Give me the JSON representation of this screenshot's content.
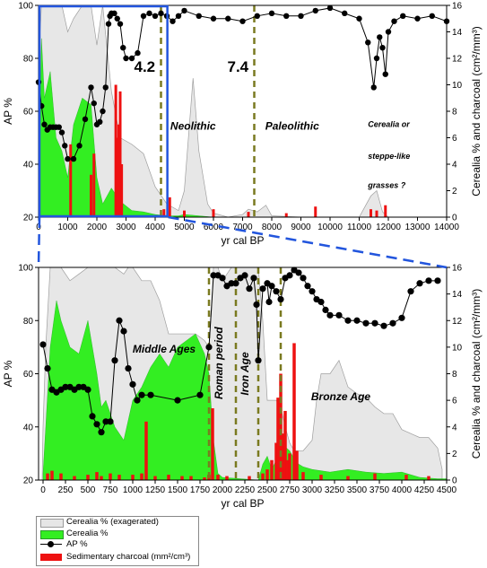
{
  "legend": {
    "cerealia_exag": "Cerealia % (exagerated)",
    "cerealia": "Cerealia %",
    "ap": "AP %",
    "charcoal": "Sedimentary charcoal (mm²/cm³)"
  },
  "colors": {
    "cerealia": "#33ee22",
    "charcoal": "#ee1111",
    "ap": "#000000",
    "exag_fill": "#e6e6e6",
    "exag_line": "#9a9a9a",
    "box": "#2255dd",
    "event_line": "#7a7a20"
  },
  "chart_data": [
    {
      "type": "line",
      "xlabel": "yr cal BP",
      "ylabel": "AP %",
      "y2label": "Cerealia % and charcoal (cm²/mm³)",
      "xlim": [
        0,
        14000
      ],
      "xticks": [
        0,
        1000,
        2000,
        3000,
        4000,
        5000,
        6000,
        7000,
        8000,
        9000,
        10000,
        11000,
        12000,
        13000,
        14000
      ],
      "ylim": [
        20,
        100
      ],
      "yticks": [
        20,
        40,
        60,
        80,
        100
      ],
      "y2lim": [
        0,
        16
      ],
      "y2ticks": [
        0,
        2,
        4,
        6,
        8,
        10,
        12,
        14,
        16
      ],
      "events": [
        {
          "x": 4200,
          "label": "4.2"
        },
        {
          "x": 7400,
          "label": "7.4"
        }
      ],
      "annotations": [
        {
          "text": "Neolithic",
          "x": 5300,
          "y": 53
        },
        {
          "text": "Paleolithic",
          "x": 8700,
          "y": 53
        },
        {
          "text": "Cerealia or",
          "x": 11300,
          "y": 54
        },
        {
          "text": "steppe-like",
          "x": 11300,
          "y": 42
        },
        {
          "text": "grasses ?",
          "x": 11300,
          "y": 31
        }
      ],
      "zoom_box": [
        0,
        4450
      ],
      "series": [
        {
          "name": "AP %",
          "x": [
            0,
            100,
            200,
            300,
            400,
            500,
            600,
            700,
            800,
            900,
            1000,
            1200,
            1400,
            1600,
            1800,
            1900,
            2000,
            2100,
            2200,
            2300,
            2400,
            2450,
            2500,
            2600,
            2700,
            2800,
            2900,
            3000,
            3200,
            3400,
            3600,
            3800,
            4000,
            4200,
            4400,
            4600,
            4800,
            5000,
            5500,
            6000,
            6500,
            7000,
            7500,
            8000,
            8500,
            9000,
            9500,
            10000,
            10500,
            11000,
            11300,
            11500,
            11600,
            11700,
            11800,
            11900,
            12000,
            12200,
            12500,
            13000,
            13500,
            14000
          ],
          "y": [
            71,
            62,
            55,
            53,
            54,
            54,
            54,
            54,
            52,
            47,
            42,
            42,
            47,
            57,
            69,
            63,
            55,
            56,
            60,
            69,
            93,
            96,
            97,
            97,
            95,
            93,
            84,
            80,
            80,
            82,
            96,
            97,
            96,
            97,
            96,
            94,
            96,
            98,
            96,
            95,
            95,
            94,
            96,
            97,
            96,
            96,
            98,
            99,
            97,
            95,
            86,
            69,
            80,
            88,
            84,
            74,
            90,
            94,
            96,
            95,
            96,
            94
          ]
        },
        {
          "name": "Cerealia % (exagerated)",
          "x": [
            0,
            100,
            200,
            400,
            600,
            800,
            1000,
            1200,
            1500,
            1800,
            2000,
            2200,
            2500,
            2800,
            3200,
            3600,
            4000,
            4400,
            4800,
            5000,
            5300,
            5500,
            5800,
            6000,
            6500,
            7000,
            7200,
            7500,
            7800,
            8000,
            9000,
            10000,
            11000,
            11200,
            11400,
            11600,
            11800,
            12000,
            14000
          ],
          "y": [
            12,
            16,
            16,
            16,
            16,
            16,
            14,
            15,
            16,
            16,
            13,
            16,
            9.5,
            6,
            5.5,
            4.8,
            2.3,
            1.0,
            0.5,
            2.0,
            10.5,
            5.0,
            1.0,
            0.3,
            0,
            0.2,
            0.6,
            0.4,
            0.9,
            0.1,
            0,
            0,
            0,
            0.8,
            1.6,
            2.0,
            0.4,
            0,
            0
          ]
        },
        {
          "name": "Cerealia %",
          "x": [
            0,
            100,
            200,
            400,
            600,
            800,
            1000,
            1200,
            1500,
            1800,
            2000,
            2200,
            2500,
            2800,
            3200,
            3600,
            4000,
            4400,
            4800,
            5000,
            5500,
            6000,
            14000
          ],
          "y": [
            4,
            13.5,
            9,
            11,
            6,
            5,
            3,
            7,
            9,
            8.5,
            3,
            1,
            2.2,
            1.2,
            0.5,
            0.4,
            0.2,
            0.1,
            0.1,
            0.2,
            0.1,
            0,
            0
          ]
        },
        {
          "name": "Sedimentary charcoal (mm²/cm³)",
          "x": [
            1100,
            1800,
            1900,
            2650,
            2700,
            2750,
            2800,
            2850,
            4300,
            4500,
            5000,
            6000,
            7200,
            8500,
            9500,
            11400,
            11600,
            11900
          ],
          "y": [
            5.5,
            3.2,
            4.8,
            10,
            6,
            7,
            9.5,
            4,
            0.6,
            1.5,
            0.5,
            0.6,
            0.4,
            0.3,
            0.8,
            0.6,
            0.5,
            0.9
          ]
        }
      ]
    },
    {
      "type": "line",
      "xlabel": "yr cal BP",
      "ylabel": "AP %",
      "y2label": "Cerealia % and charcoal (cm²/mm³)",
      "xlim": [
        -50,
        4500
      ],
      "xticks": [
        0,
        250,
        500,
        750,
        1000,
        1250,
        1500,
        1750,
        2000,
        2250,
        2500,
        2750,
        3000,
        3250,
        3500,
        3750,
        4000,
        4250,
        4500
      ],
      "ylim": [
        20,
        100
      ],
      "yticks": [
        20,
        40,
        60,
        80,
        100
      ],
      "y2lim": [
        0,
        16
      ],
      "y2ticks": [
        0,
        2,
        4,
        6,
        8,
        10,
        12,
        14,
        16
      ],
      "events": [
        {
          "x": 1850
        },
        {
          "x": 2150
        },
        {
          "x": 2400
        },
        {
          "x": 2650
        }
      ],
      "annotations": [
        {
          "text": "Middle Ages",
          "x": 1350,
          "y": 68,
          "rot": 0
        },
        {
          "text": "Roman period",
          "x": 2000,
          "y": 64,
          "rot": -90
        },
        {
          "text": "Iron Age",
          "x": 2290,
          "y": 60,
          "rot": -90
        },
        {
          "text": "Bronze Age",
          "x": 3320,
          "y": 50,
          "rot": 0
        }
      ],
      "series": [
        {
          "name": "AP %",
          "x": [
            0,
            50,
            100,
            150,
            200,
            250,
            300,
            350,
            400,
            450,
            500,
            550,
            600,
            650,
            700,
            750,
            800,
            850,
            900,
            950,
            1000,
            1050,
            1100,
            1200,
            1500,
            1750,
            1850,
            1900,
            1950,
            2000,
            2050,
            2100,
            2150,
            2200,
            2250,
            2300,
            2350,
            2380,
            2400,
            2450,
            2500,
            2520,
            2550,
            2600,
            2650,
            2700,
            2750,
            2800,
            2850,
            2900,
            2950,
            3000,
            3050,
            3100,
            3150,
            3200,
            3300,
            3400,
            3500,
            3600,
            3700,
            3800,
            3900,
            4000,
            4100,
            4200,
            4300,
            4400
          ],
          "y": [
            71,
            62,
            54,
            53,
            54,
            55,
            55,
            54,
            55,
            55,
            54,
            44,
            41,
            38,
            42,
            42,
            65,
            80,
            76,
            62,
            56,
            50,
            52,
            52,
            50,
            52,
            70,
            97,
            97,
            96,
            93,
            94,
            94,
            96,
            97,
            92,
            96,
            86,
            65,
            92,
            94,
            87,
            93,
            91,
            88,
            96,
            97,
            99,
            98,
            96,
            93,
            91,
            88,
            87,
            84,
            82,
            82,
            80,
            80,
            79,
            79,
            78,
            79,
            81,
            91,
            94,
            95,
            95
          ]
        },
        {
          "name": "Cerealia % (exagerated)",
          "x": [
            -10,
            0,
            30,
            80,
            150,
            200,
            300,
            400,
            500,
            600,
            700,
            800,
            900,
            950,
            1000,
            1100,
            1200,
            1300,
            1400,
            1500,
            1600,
            1700,
            1800,
            1850,
            1880,
            1900,
            1950,
            2000,
            2100,
            2200,
            2300,
            2380,
            2400,
            2450,
            2500,
            2550,
            2600,
            2650,
            2700,
            2750,
            2800,
            2900,
            3000,
            3050,
            3100,
            3200,
            3300,
            3400,
            3500,
            3600,
            3700,
            3800,
            3900,
            4000,
            4100,
            4200,
            4300,
            4400,
            4450
          ],
          "y": [
            0,
            4,
            10,
            16,
            16,
            16,
            15,
            15.5,
            16,
            16,
            16,
            16,
            15.5,
            16,
            16,
            15,
            15,
            13.5,
            11,
            11,
            11,
            11,
            10.5,
            10,
            13,
            16,
            16,
            15,
            16,
            16,
            16,
            16,
            16,
            12,
            6,
            6,
            6,
            5.5,
            4,
            2.8,
            2.2,
            2.2,
            3,
            6,
            8,
            8,
            9,
            7,
            6.5,
            6.2,
            5.5,
            5,
            5,
            3.8,
            3.5,
            3.2,
            3.2,
            2.4,
            0.8
          ]
        },
        {
          "name": "Cerealia %",
          "x": [
            0,
            30,
            80,
            150,
            200,
            300,
            400,
            500,
            600,
            650,
            700,
            800,
            900,
            1000,
            1100,
            1200,
            1300,
            1400,
            1500,
            1600,
            1700,
            1800,
            1850,
            1900,
            1950,
            2000,
            2400,
            2450,
            2500,
            2550,
            2600,
            2650,
            2700,
            2750,
            2800,
            2850,
            2900,
            3000,
            3200,
            3400,
            3600,
            3800,
            4000,
            4200,
            4400,
            4500
          ],
          "y": [
            0.5,
            4,
            10,
            13.5,
            12,
            10,
            9.5,
            12,
            8,
            5.5,
            6,
            4,
            3,
            6,
            7,
            8.5,
            9.5,
            8.5,
            10,
            10.5,
            11,
            9.5,
            8,
            3,
            0.5,
            0.2,
            0,
            1.2,
            1.8,
            0.8,
            1.5,
            2.2,
            2.5,
            2.2,
            1.6,
            1.2,
            1.0,
            0.8,
            0.6,
            0.8,
            0.6,
            0.5,
            0.6,
            0.2,
            0.1,
            0.1
          ]
        },
        {
          "name": "Sedimentary charcoal (mm²/cm³)",
          "x": [
            50,
            100,
            200,
            350,
            500,
            600,
            650,
            750,
            850,
            1000,
            1100,
            1150,
            1250,
            1400,
            1550,
            1650,
            1800,
            1850,
            1890,
            1950,
            2050,
            2300,
            2450,
            2500,
            2550,
            2600,
            2620,
            2650,
            2680,
            2700,
            2720,
            2750,
            2800,
            2830,
            2900,
            3100,
            3400,
            3700,
            4050,
            4300
          ],
          "y": [
            0.5,
            0.7,
            0.5,
            0.3,
            0.4,
            0.6,
            0.3,
            0.5,
            0.4,
            0.4,
            0.5,
            4.4,
            0.3,
            0.4,
            0.3,
            0.3,
            0.2,
            0.4,
            5.4,
            0.4,
            0.3,
            0.3,
            0.5,
            0.8,
            1.5,
            2.8,
            6.2,
            8.0,
            3.5,
            5.2,
            1.5,
            2.0,
            10.3,
            2.2,
            0.6,
            0.4,
            0.3,
            0.5,
            0.4,
            0.3
          ]
        }
      ]
    }
  ]
}
